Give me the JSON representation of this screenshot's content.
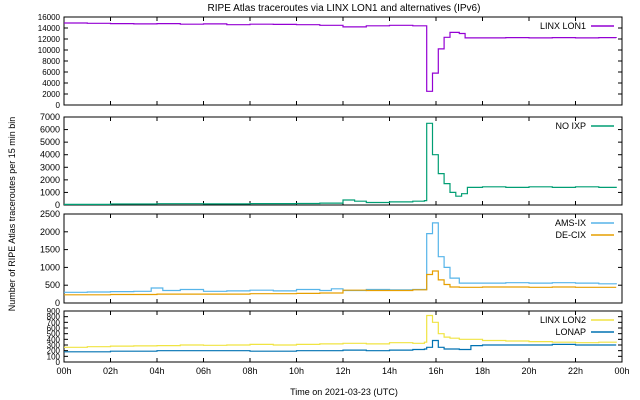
{
  "chart_data": {
    "type": "line",
    "title": "RIPE Atlas traceroutes via LINX LON1 and alternatives (IPv6)",
    "xlabel": "Time on 2021-03-23 (UTC)",
    "ylabel": "Number of RIPE Atlas traceroutes per 15 min bin",
    "x_unit": "hours since 2021-03-23 00:00 UTC",
    "x_range": [
      0,
      24
    ],
    "x_ticks": [
      {
        "v": 0,
        "label": "00h"
      },
      {
        "v": 2,
        "label": "02h"
      },
      {
        "v": 4,
        "label": "04h"
      },
      {
        "v": 6,
        "label": "06h"
      },
      {
        "v": 8,
        "label": "08h"
      },
      {
        "v": 10,
        "label": "10h"
      },
      {
        "v": 12,
        "label": "12h"
      },
      {
        "v": 14,
        "label": "14h"
      },
      {
        "v": 16,
        "label": "16h"
      },
      {
        "v": 18,
        "label": "18h"
      },
      {
        "v": 20,
        "label": "20h"
      },
      {
        "v": 22,
        "label": "22h"
      },
      {
        "v": 24,
        "label": "00h"
      }
    ],
    "grid": false,
    "legend_position": "top-right",
    "panels": [
      {
        "ylim": [
          0,
          16000
        ],
        "yticks": [
          0,
          2000,
          4000,
          6000,
          8000,
          10000,
          12000,
          14000,
          16000
        ],
        "series": [
          {
            "name": "LINX LON1",
            "color": "#9400d3",
            "points": [
              [
                0,
                14900
              ],
              [
                1,
                14850
              ],
              [
                2,
                14800
              ],
              [
                3,
                14750
              ],
              [
                4,
                14800
              ],
              [
                5,
                14700
              ],
              [
                6,
                14750
              ],
              [
                7,
                14600
              ],
              [
                8,
                14700
              ],
              [
                9,
                14650
              ],
              [
                10,
                14600
              ],
              [
                11,
                14500
              ],
              [
                12,
                14200
              ],
              [
                13,
                14400
              ],
              [
                14,
                14500
              ],
              [
                15,
                14400
              ],
              [
                15.5,
                14400
              ],
              [
                15.6,
                2500
              ],
              [
                15.85,
                5800
              ],
              [
                16.1,
                10200
              ],
              [
                16.35,
                12300
              ],
              [
                16.6,
                13200
              ],
              [
                17,
                13000
              ],
              [
                17.25,
                12200
              ],
              [
                18,
                12200
              ],
              [
                19,
                12250
              ],
              [
                20,
                12200
              ],
              [
                21,
                12250
              ],
              [
                22,
                12200
              ],
              [
                23,
                12250
              ],
              [
                23.75,
                12200
              ]
            ]
          }
        ]
      },
      {
        "ylim": [
          0,
          7000
        ],
        "yticks": [
          0,
          1000,
          2000,
          3000,
          4000,
          5000,
          6000,
          7000
        ],
        "series": [
          {
            "name": "NO IXP",
            "color": "#009e73",
            "points": [
              [
                0,
                50
              ],
              [
                2,
                80
              ],
              [
                4,
                100
              ],
              [
                6,
                90
              ],
              [
                8,
                110
              ],
              [
                10,
                120
              ],
              [
                11,
                150
              ],
              [
                12,
                400
              ],
              [
                12.5,
                300
              ],
              [
                13,
                200
              ],
              [
                14,
                250
              ],
              [
                15,
                300
              ],
              [
                15.5,
                350
              ],
              [
                15.6,
                6500
              ],
              [
                15.85,
                4000
              ],
              [
                16.1,
                2500
              ],
              [
                16.35,
                1700
              ],
              [
                16.6,
                1000
              ],
              [
                16.85,
                700
              ],
              [
                17.1,
                900
              ],
              [
                17.35,
                1400
              ],
              [
                18,
                1450
              ],
              [
                19,
                1400
              ],
              [
                20,
                1450
              ],
              [
                21,
                1400
              ],
              [
                22,
                1450
              ],
              [
                23,
                1400
              ],
              [
                23.75,
                1450
              ]
            ]
          }
        ]
      },
      {
        "ylim": [
          0,
          2500
        ],
        "yticks": [
          0,
          500,
          1000,
          1500,
          2000,
          2500
        ],
        "series": [
          {
            "name": "AMS-IX",
            "color": "#56b4e9",
            "points": [
              [
                0,
                300
              ],
              [
                1,
                310
              ],
              [
                2,
                320
              ],
              [
                3,
                330
              ],
              [
                3.75,
                420
              ],
              [
                4.25,
                350
              ],
              [
                5,
                380
              ],
              [
                6,
                330
              ],
              [
                7,
                340
              ],
              [
                8,
                360
              ],
              [
                9,
                340
              ],
              [
                10,
                380
              ],
              [
                11,
                350
              ],
              [
                11.5,
                400
              ],
              [
                12,
                350
              ],
              [
                13,
                380
              ],
              [
                14,
                370
              ],
              [
                15,
                380
              ],
              [
                15.5,
                380
              ],
              [
                15.6,
                1950
              ],
              [
                15.85,
                2250
              ],
              [
                16.1,
                1300
              ],
              [
                16.35,
                1000
              ],
              [
                16.6,
                700
              ],
              [
                17,
                560
              ],
              [
                18,
                560
              ],
              [
                19,
                570
              ],
              [
                20,
                560
              ],
              [
                21,
                570
              ],
              [
                22,
                560
              ],
              [
                23,
                540
              ],
              [
                23.75,
                560
              ]
            ]
          },
          {
            "name": "DE-CIX",
            "color": "#e69f00",
            "points": [
              [
                0,
                230
              ],
              [
                2,
                240
              ],
              [
                4,
                250
              ],
              [
                6,
                250
              ],
              [
                8,
                260
              ],
              [
                10,
                270
              ],
              [
                11,
                280
              ],
              [
                12,
                360
              ],
              [
                13,
                350
              ],
              [
                14,
                350
              ],
              [
                15,
                370
              ],
              [
                15.5,
                370
              ],
              [
                15.6,
                800
              ],
              [
                15.85,
                900
              ],
              [
                16.1,
                650
              ],
              [
                16.35,
                520
              ],
              [
                16.6,
                450
              ],
              [
                17,
                440
              ],
              [
                18,
                450
              ],
              [
                19,
                450
              ],
              [
                20,
                440
              ],
              [
                21,
                450
              ],
              [
                22,
                440
              ],
              [
                23,
                440
              ],
              [
                23.75,
                440
              ]
            ]
          }
        ]
      },
      {
        "ylim": [
          0,
          900
        ],
        "yticks": [
          0,
          100,
          200,
          300,
          400,
          500,
          600,
          700,
          800,
          900
        ],
        "series": [
          {
            "name": "LINX LON2",
            "color": "#f0e442",
            "points": [
              [
                0,
                260
              ],
              [
                1,
                270
              ],
              [
                2,
                280
              ],
              [
                3,
                285
              ],
              [
                4,
                290
              ],
              [
                5,
                300
              ],
              [
                6,
                295
              ],
              [
                7,
                300
              ],
              [
                8,
                310
              ],
              [
                9,
                300
              ],
              [
                10,
                310
              ],
              [
                11,
                320
              ],
              [
                12,
                330
              ],
              [
                13,
                320
              ],
              [
                14,
                340
              ],
              [
                15,
                330
              ],
              [
                15.5,
                350
              ],
              [
                15.6,
                820
              ],
              [
                15.85,
                700
              ],
              [
                16.1,
                500
              ],
              [
                16.35,
                440
              ],
              [
                16.6,
                420
              ],
              [
                17,
                400
              ],
              [
                18,
                380
              ],
              [
                19,
                370
              ],
              [
                20,
                360
              ],
              [
                21,
                350
              ],
              [
                22,
                340
              ],
              [
                23,
                350
              ],
              [
                23.75,
                340
              ]
            ]
          },
          {
            "name": "LONAP",
            "color": "#0072b2",
            "points": [
              [
                0,
                180
              ],
              [
                2,
                190
              ],
              [
                4,
                200
              ],
              [
                6,
                200
              ],
              [
                8,
                190
              ],
              [
                10,
                200
              ],
              [
                12,
                210
              ],
              [
                13,
                200
              ],
              [
                14,
                210
              ],
              [
                15,
                220
              ],
              [
                15.5,
                230
              ],
              [
                15.6,
                260
              ],
              [
                15.85,
                380
              ],
              [
                16.1,
                260
              ],
              [
                16.35,
                230
              ],
              [
                17,
                220
              ],
              [
                17.5,
                290
              ],
              [
                18,
                300
              ],
              [
                19,
                300
              ],
              [
                20,
                300
              ],
              [
                21,
                310
              ],
              [
                22,
                300
              ],
              [
                23,
                300
              ],
              [
                23.75,
                300
              ]
            ]
          }
        ]
      }
    ]
  }
}
